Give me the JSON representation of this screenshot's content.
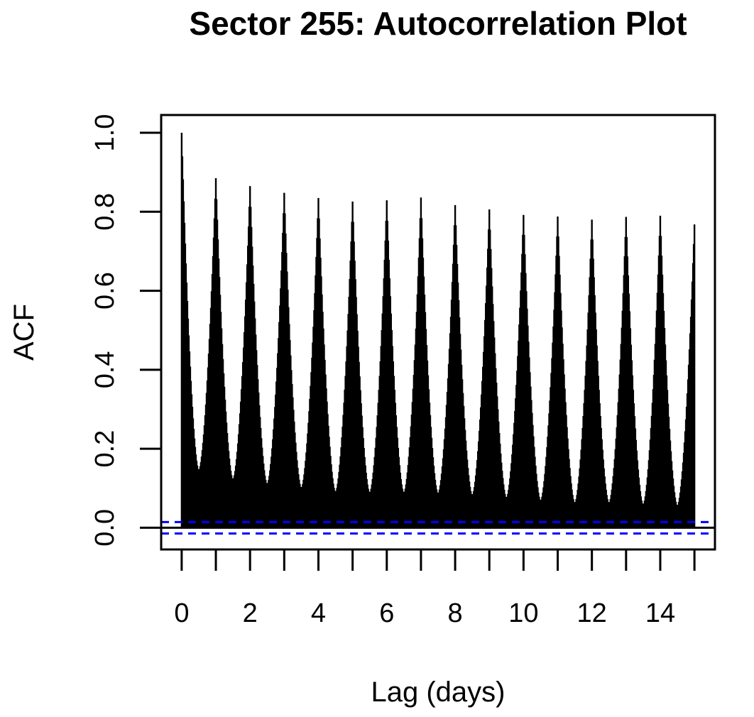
{
  "chart_data": {
    "type": "bar",
    "title": "Sector 255: Autocorrelation Plot",
    "xlabel": "Lag (days)",
    "ylabel": "ACF",
    "xlim": [
      -0.6,
      15.6
    ],
    "ylim": [
      -0.055,
      1.045
    ],
    "x_ticks": [
      0,
      1,
      2,
      3,
      4,
      5,
      6,
      7,
      8,
      9,
      10,
      11,
      12,
      13,
      14,
      15
    ],
    "x_tick_labels": [
      "0",
      "",
      "2",
      "",
      "4",
      "",
      "6",
      "",
      "8",
      "",
      "10",
      "",
      "12",
      "",
      "14",
      ""
    ],
    "y_ticks": [
      0.0,
      0.2,
      0.4,
      0.6,
      0.8,
      1.0
    ],
    "y_tick_labels": [
      "0.0",
      "0.2",
      "0.4",
      "0.6",
      "0.8",
      "1.0"
    ],
    "lag_max_days": 15,
    "lags_per_day": 48,
    "daily_peaks": [
      1.0,
      0.885,
      0.865,
      0.848,
      0.835,
      0.826,
      0.829,
      0.836,
      0.817,
      0.806,
      0.792,
      0.788,
      0.78,
      0.787,
      0.79,
      0.768
    ],
    "daily_troughs": [
      0.145,
      0.122,
      0.11,
      0.1,
      0.09,
      0.088,
      0.088,
      0.086,
      0.082,
      0.075,
      0.068,
      0.062,
      0.062,
      0.058,
      0.055
    ],
    "confidence_bound": 0.0145,
    "colors": {
      "bars": "#000000",
      "confidence": "#0000ff",
      "zero_line": "#000000"
    }
  }
}
